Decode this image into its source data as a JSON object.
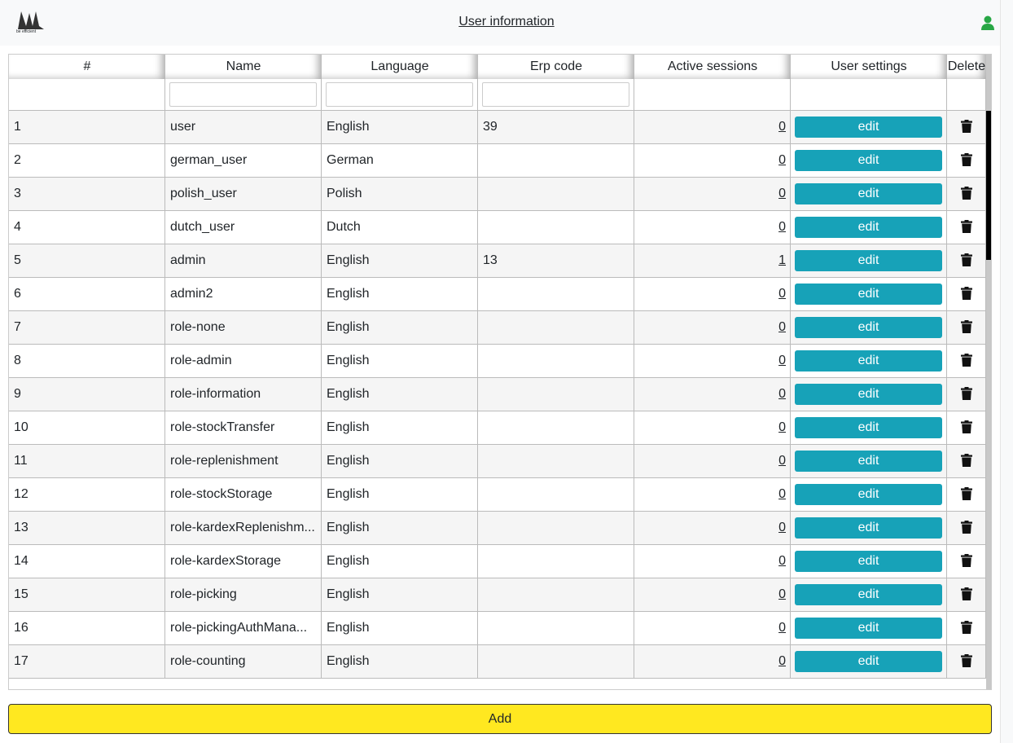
{
  "header": {
    "logo_text": "be efficient",
    "title": "User information"
  },
  "table": {
    "columns": [
      "#",
      "Name",
      "Language",
      "Erp code",
      "Active sessions",
      "User settings",
      "Delete"
    ],
    "edit_label": "edit",
    "rows": [
      [
        1,
        "user",
        "English",
        "39",
        0
      ],
      [
        2,
        "german_user",
        "German",
        null,
        0
      ],
      [
        3,
        "polish_user",
        "Polish",
        null,
        0
      ],
      [
        4,
        "dutch_user",
        "Dutch",
        null,
        0
      ],
      [
        5,
        "admin",
        "English",
        "13",
        1
      ],
      [
        6,
        "admin2",
        "English",
        null,
        0
      ],
      [
        7,
        "role-none",
        "English",
        null,
        0
      ],
      [
        8,
        "role-admin",
        "English",
        null,
        0
      ],
      [
        9,
        "role-information",
        "English",
        null,
        0
      ],
      [
        10,
        "role-stockTransfer",
        "English",
        null,
        0
      ],
      [
        11,
        "role-replenishment",
        "English",
        null,
        0
      ],
      [
        12,
        "role-stockStorage",
        "English",
        null,
        0
      ],
      [
        13,
        "role-kardexReplenishm...",
        "English",
        null,
        0
      ],
      [
        14,
        "role-kardexStorage",
        "English",
        null,
        0
      ],
      [
        15,
        "role-picking",
        "English",
        null,
        0
      ],
      [
        16,
        "role-pickingAuthMana...",
        "English",
        null,
        0
      ],
      [
        17,
        "role-counting",
        "English",
        null,
        0
      ]
    ]
  },
  "add_button": "Add"
}
